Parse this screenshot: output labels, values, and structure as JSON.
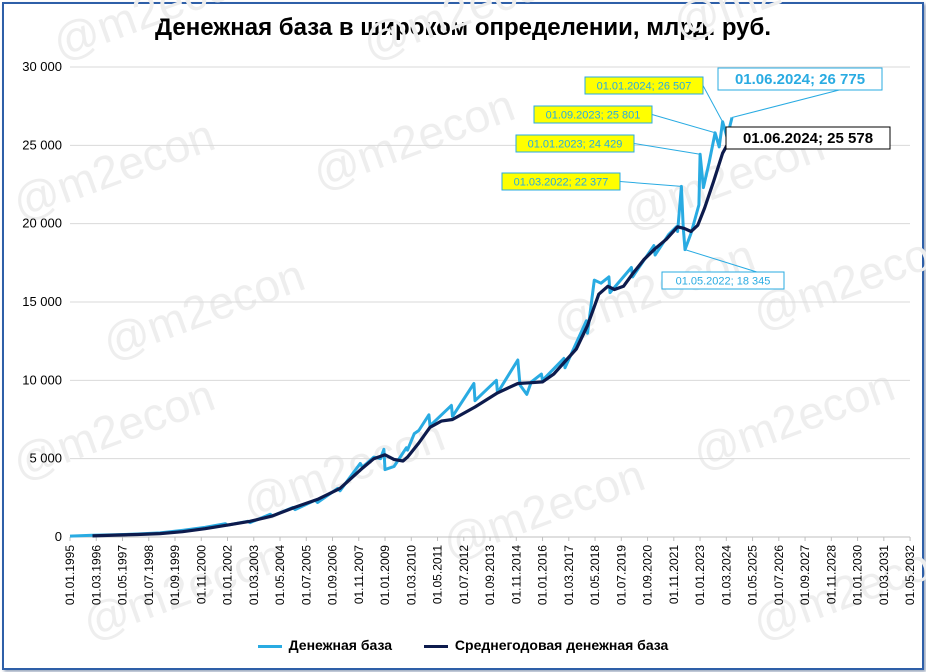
{
  "chart_data": {
    "type": "line",
    "title": "Денежная база в широком определении, млрд. руб.",
    "ylim": [
      0,
      30000
    ],
    "yticks": [
      0,
      5000,
      10000,
      15000,
      20000,
      25000,
      30000
    ],
    "ytick_labels": [
      "0",
      "5 000",
      "10 000",
      "15 000",
      "20 000",
      "25 000",
      "30 000"
    ],
    "x_tick_labels": [
      "01.01.1995",
      "01.03.1996",
      "01.05.1997",
      "01.07.1998",
      "01.09.1999",
      "01.11.2000",
      "01.01.2002",
      "01.03.2003",
      "01.05.2004",
      "01.07.2005",
      "01.09.2006",
      "01.11.2007",
      "01.01.2009",
      "01.03.2010",
      "01.05.2011",
      "01.07.2012",
      "01.09.2013",
      "01.11.2014",
      "01.01.2016",
      "01.03.2017",
      "01.05.2018",
      "01.07.2019",
      "01.09.2020",
      "01.11.2021",
      "01.01.2023",
      "01.03.2024",
      "01.05.2025",
      "01.07.2026",
      "01.09.2027",
      "01.11.2028",
      "01.01.2030",
      "01.03.2031",
      "01.05.2032"
    ],
    "grid": true,
    "legend_position": "bottom",
    "series": [
      {
        "name": "Денежная база",
        "color": "#29abe2",
        "points": [
          [
            "1995.0",
            60
          ],
          [
            "1996.0",
            110
          ],
          [
            "1997.0",
            140
          ],
          [
            "1998.0",
            190
          ],
          [
            "1999.0",
            260
          ],
          [
            "2000.0",
            420
          ],
          [
            "2001.0",
            610
          ],
          [
            "2001.9",
            850
          ],
          [
            "2002.0",
            760
          ],
          [
            "2002.9",
            1000
          ],
          [
            "2003.0",
            920
          ],
          [
            "2003.9",
            1450
          ],
          [
            "2004.0",
            1350
          ],
          [
            "2004.9",
            1880
          ],
          [
            "2005.0",
            1750
          ],
          [
            "2005.9",
            2350
          ],
          [
            "2006.0",
            2200
          ],
          [
            "2006.9",
            3100
          ],
          [
            "2007.0",
            2950
          ],
          [
            "2007.9",
            4700
          ],
          [
            "2008.0",
            4450
          ],
          [
            "2008.5",
            5100
          ],
          [
            "2008.8",
            5000
          ],
          [
            "2008.95",
            5600
          ],
          [
            "2009.0",
            4300
          ],
          [
            "2009.4",
            4500
          ],
          [
            "2009.95",
            5700
          ],
          [
            "2010.0",
            5550
          ],
          [
            "2010.3",
            6600
          ],
          [
            "2010.5",
            6800
          ],
          [
            "2010.95",
            7800
          ],
          [
            "2011.0",
            7100
          ],
          [
            "2011.95",
            8400
          ],
          [
            "2012.0",
            7700
          ],
          [
            "2012.95",
            9800
          ],
          [
            "2013.0",
            8700
          ],
          [
            "2013.95",
            10000
          ],
          [
            "2014.0",
            9200
          ],
          [
            "2014.9",
            11300
          ],
          [
            "2015.0",
            9700
          ],
          [
            "2015.3",
            9100
          ],
          [
            "2015.5",
            9900
          ],
          [
            "2015.95",
            10400
          ],
          [
            "2016.0",
            10000
          ],
          [
            "2016.95",
            11400
          ],
          [
            "2017.0",
            10800
          ],
          [
            "2017.95",
            13800
          ],
          [
            "2018.0",
            13000
          ],
          [
            "2018.3",
            16400
          ],
          [
            "2018.6",
            16200
          ],
          [
            "2018.95",
            16600
          ],
          [
            "2019.0",
            15600
          ],
          [
            "2019.95",
            17200
          ],
          [
            "2020.0",
            16600
          ],
          [
            "2020.95",
            18600
          ],
          [
            "2021.0",
            18000
          ],
          [
            "2021.6",
            19300
          ],
          [
            "2021.95",
            19800
          ],
          [
            "2022.0",
            19500
          ],
          [
            "2022.17",
            22377
          ],
          [
            "2022.25",
            19800
          ],
          [
            "2022.33",
            18345
          ],
          [
            "2022.6",
            19400
          ],
          [
            "2022.95",
            21200
          ],
          [
            "2023.0",
            24429
          ],
          [
            "2023.15",
            22300
          ],
          [
            "2023.4",
            23900
          ],
          [
            "2023.67",
            25801
          ],
          [
            "2023.85",
            24900
          ],
          [
            "2024.0",
            26507
          ],
          [
            "2024.2",
            25500
          ],
          [
            "2024.42",
            26775
          ]
        ]
      },
      {
        "name": "Среднегодовая денежная база",
        "color": "#0d1b4d",
        "points": [
          [
            "1996.0",
            70
          ],
          [
            "1997.0",
            120
          ],
          [
            "1998.0",
            160
          ],
          [
            "1999.0",
            220
          ],
          [
            "2000.0",
            340
          ],
          [
            "2001.0",
            530
          ],
          [
            "2002.0",
            760
          ],
          [
            "2003.0",
            1000
          ],
          [
            "2004.0",
            1350
          ],
          [
            "2005.0",
            1900
          ],
          [
            "2006.0",
            2400
          ],
          [
            "2007.0",
            3100
          ],
          [
            "2008.0",
            4400
          ],
          [
            "2008.5",
            5000
          ],
          [
            "2009.0",
            5250
          ],
          [
            "2009.4",
            4950
          ],
          [
            "2009.8",
            4850
          ],
          [
            "2010.0",
            5100
          ],
          [
            "2010.5",
            6000
          ],
          [
            "2011.0",
            7000
          ],
          [
            "2011.5",
            7400
          ],
          [
            "2012.0",
            7500
          ],
          [
            "2013.0",
            8300
          ],
          [
            "2014.0",
            9200
          ],
          [
            "2014.9",
            9800
          ],
          [
            "2015.5",
            9850
          ],
          [
            "2016.0",
            9900
          ],
          [
            "2016.5",
            10400
          ],
          [
            "2017.0",
            11200
          ],
          [
            "2017.5",
            12000
          ],
          [
            "2018.0",
            13500
          ],
          [
            "2018.5",
            15500
          ],
          [
            "2018.9",
            16000
          ],
          [
            "2019.2",
            15800
          ],
          [
            "2019.6",
            16000
          ],
          [
            "2020.0",
            16800
          ],
          [
            "2020.5",
            17700
          ],
          [
            "2021.0",
            18400
          ],
          [
            "2021.5",
            19000
          ],
          [
            "2022.0",
            19800
          ],
          [
            "2022.3",
            19700
          ],
          [
            "2022.6",
            19500
          ],
          [
            "2022.9",
            19900
          ],
          [
            "2023.2",
            21000
          ],
          [
            "2023.6",
            22700
          ],
          [
            "2024.0",
            24500
          ],
          [
            "2024.42",
            25578
          ]
        ]
      }
    ],
    "annotations": [
      {
        "label": "01.01.2024;  26 507",
        "style": "yellow"
      },
      {
        "label": "01.09.2023;  25 801",
        "style": "yellow"
      },
      {
        "label": "01.01.2023;  24 429",
        "style": "yellow"
      },
      {
        "label": "01.03.2022;  22 377",
        "style": "yellow"
      },
      {
        "label": "01.05.2022;  18 345",
        "style": "blue-outline"
      },
      {
        "label": "01.06.2024;  26 775",
        "style": "blue-big"
      },
      {
        "label": "01.06.2024;  25 578",
        "style": "black-big"
      }
    ],
    "watermark": "@m2econ"
  }
}
